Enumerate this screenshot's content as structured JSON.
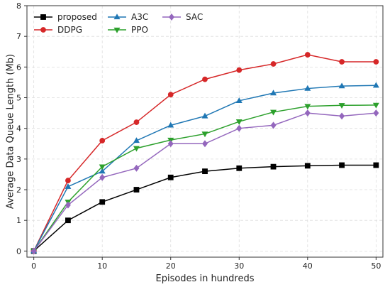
{
  "chart_data": {
    "type": "line",
    "title": "",
    "xlabel": "Episodes in hundreds",
    "ylabel": "Average Data Queue Length (Mb)",
    "xlim": [
      -1,
      51
    ],
    "ylim": [
      -0.2,
      8
    ],
    "xticks": [
      0,
      10,
      20,
      30,
      40,
      50
    ],
    "yticks": [
      0,
      1,
      2,
      3,
      4,
      5,
      6,
      7,
      8
    ],
    "grid": true,
    "legend_position": "top-left",
    "x": [
      0,
      5,
      10,
      15,
      20,
      25,
      30,
      35,
      40,
      45,
      50
    ],
    "series": [
      {
        "name": "proposed",
        "color": "#000000",
        "marker": "square",
        "values": [
          0,
          1.0,
          1.6,
          2.0,
          2.4,
          2.6,
          2.7,
          2.75,
          2.78,
          2.8,
          2.8
        ]
      },
      {
        "name": "DDPG",
        "color": "#d62728",
        "marker": "circle",
        "values": [
          0,
          2.3,
          3.6,
          4.2,
          5.1,
          5.6,
          5.9,
          6.1,
          6.4,
          6.17,
          6.17
        ]
      },
      {
        "name": "A3C",
        "color": "#1f77b4",
        "marker": "triangle-up",
        "values": [
          0,
          2.1,
          2.6,
          3.6,
          4.1,
          4.4,
          4.9,
          5.15,
          5.3,
          5.38,
          5.4
        ]
      },
      {
        "name": "PPO",
        "color": "#2ca02c",
        "marker": "triangle-down",
        "values": [
          0,
          1.6,
          2.75,
          3.35,
          3.62,
          3.82,
          4.22,
          4.53,
          4.72,
          4.75,
          4.76
        ]
      },
      {
        "name": "SAC",
        "color": "#9467bd",
        "marker": "diamond",
        "values": [
          0,
          1.5,
          2.4,
          2.7,
          3.5,
          3.5,
          4.0,
          4.1,
          4.5,
          4.4,
          4.5
        ]
      }
    ]
  }
}
